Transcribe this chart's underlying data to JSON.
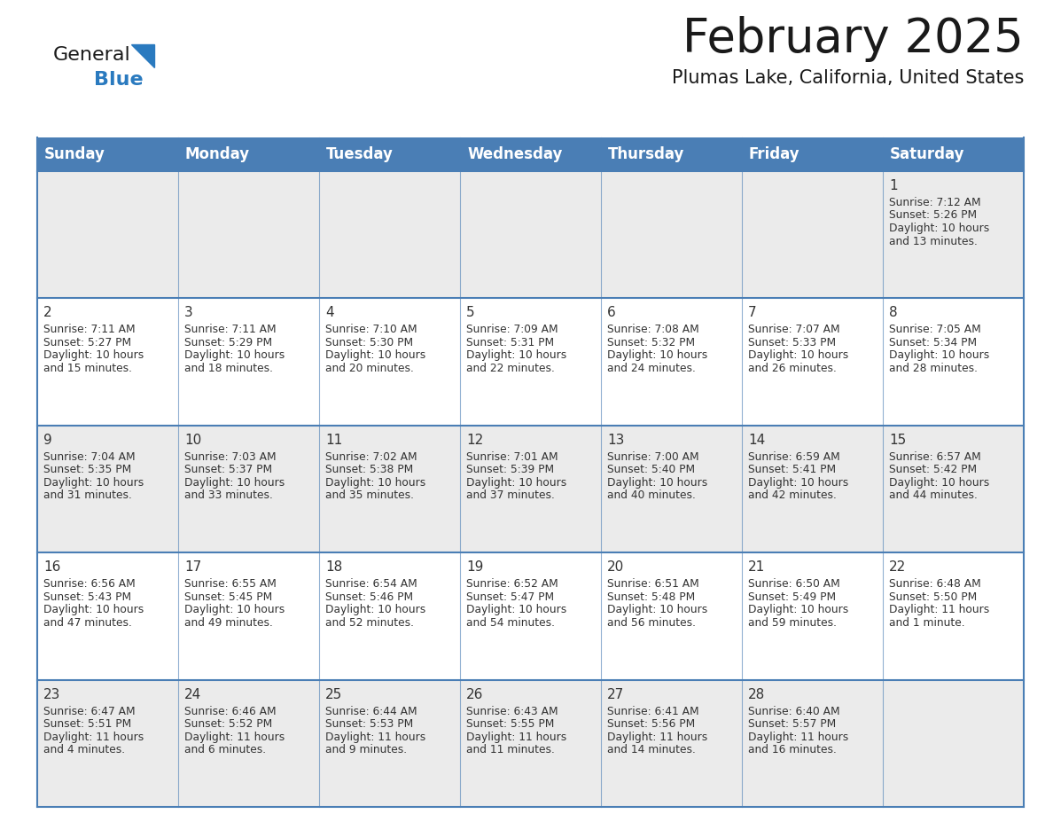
{
  "title": "February 2025",
  "subtitle": "Plumas Lake, California, United States",
  "header_color": "#4a7eb5",
  "header_text_color": "#ffffff",
  "days_of_week": [
    "Sunday",
    "Monday",
    "Tuesday",
    "Wednesday",
    "Thursday",
    "Friday",
    "Saturday"
  ],
  "background_color": "#ffffff",
  "cell_bg_odd": "#ebebeb",
  "cell_bg_even": "#ffffff",
  "border_color": "#4a7eb5",
  "text_color": "#333333",
  "calendar_data": [
    [
      null,
      null,
      null,
      null,
      null,
      null,
      {
        "day": 1,
        "sunrise": "7:12 AM",
        "sunset": "5:26 PM",
        "daylight": "10 hours",
        "daylight2": "and 13 minutes."
      }
    ],
    [
      {
        "day": 2,
        "sunrise": "7:11 AM",
        "sunset": "5:27 PM",
        "daylight": "10 hours",
        "daylight2": "and 15 minutes."
      },
      {
        "day": 3,
        "sunrise": "7:11 AM",
        "sunset": "5:29 PM",
        "daylight": "10 hours",
        "daylight2": "and 18 minutes."
      },
      {
        "day": 4,
        "sunrise": "7:10 AM",
        "sunset": "5:30 PM",
        "daylight": "10 hours",
        "daylight2": "and 20 minutes."
      },
      {
        "day": 5,
        "sunrise": "7:09 AM",
        "sunset": "5:31 PM",
        "daylight": "10 hours",
        "daylight2": "and 22 minutes."
      },
      {
        "day": 6,
        "sunrise": "7:08 AM",
        "sunset": "5:32 PM",
        "daylight": "10 hours",
        "daylight2": "and 24 minutes."
      },
      {
        "day": 7,
        "sunrise": "7:07 AM",
        "sunset": "5:33 PM",
        "daylight": "10 hours",
        "daylight2": "and 26 minutes."
      },
      {
        "day": 8,
        "sunrise": "7:05 AM",
        "sunset": "5:34 PM",
        "daylight": "10 hours",
        "daylight2": "and 28 minutes."
      }
    ],
    [
      {
        "day": 9,
        "sunrise": "7:04 AM",
        "sunset": "5:35 PM",
        "daylight": "10 hours",
        "daylight2": "and 31 minutes."
      },
      {
        "day": 10,
        "sunrise": "7:03 AM",
        "sunset": "5:37 PM",
        "daylight": "10 hours",
        "daylight2": "and 33 minutes."
      },
      {
        "day": 11,
        "sunrise": "7:02 AM",
        "sunset": "5:38 PM",
        "daylight": "10 hours",
        "daylight2": "and 35 minutes."
      },
      {
        "day": 12,
        "sunrise": "7:01 AM",
        "sunset": "5:39 PM",
        "daylight": "10 hours",
        "daylight2": "and 37 minutes."
      },
      {
        "day": 13,
        "sunrise": "7:00 AM",
        "sunset": "5:40 PM",
        "daylight": "10 hours",
        "daylight2": "and 40 minutes."
      },
      {
        "day": 14,
        "sunrise": "6:59 AM",
        "sunset": "5:41 PM",
        "daylight": "10 hours",
        "daylight2": "and 42 minutes."
      },
      {
        "day": 15,
        "sunrise": "6:57 AM",
        "sunset": "5:42 PM",
        "daylight": "10 hours",
        "daylight2": "and 44 minutes."
      }
    ],
    [
      {
        "day": 16,
        "sunrise": "6:56 AM",
        "sunset": "5:43 PM",
        "daylight": "10 hours",
        "daylight2": "and 47 minutes."
      },
      {
        "day": 17,
        "sunrise": "6:55 AM",
        "sunset": "5:45 PM",
        "daylight": "10 hours",
        "daylight2": "and 49 minutes."
      },
      {
        "day": 18,
        "sunrise": "6:54 AM",
        "sunset": "5:46 PM",
        "daylight": "10 hours",
        "daylight2": "and 52 minutes."
      },
      {
        "day": 19,
        "sunrise": "6:52 AM",
        "sunset": "5:47 PM",
        "daylight": "10 hours",
        "daylight2": "and 54 minutes."
      },
      {
        "day": 20,
        "sunrise": "6:51 AM",
        "sunset": "5:48 PM",
        "daylight": "10 hours",
        "daylight2": "and 56 minutes."
      },
      {
        "day": 21,
        "sunrise": "6:50 AM",
        "sunset": "5:49 PM",
        "daylight": "10 hours",
        "daylight2": "and 59 minutes."
      },
      {
        "day": 22,
        "sunrise": "6:48 AM",
        "sunset": "5:50 PM",
        "daylight": "11 hours",
        "daylight2": "and 1 minute."
      }
    ],
    [
      {
        "day": 23,
        "sunrise": "6:47 AM",
        "sunset": "5:51 PM",
        "daylight": "11 hours",
        "daylight2": "and 4 minutes."
      },
      {
        "day": 24,
        "sunrise": "6:46 AM",
        "sunset": "5:52 PM",
        "daylight": "11 hours",
        "daylight2": "and 6 minutes."
      },
      {
        "day": 25,
        "sunrise": "6:44 AM",
        "sunset": "5:53 PM",
        "daylight": "11 hours",
        "daylight2": "and 9 minutes."
      },
      {
        "day": 26,
        "sunrise": "6:43 AM",
        "sunset": "5:55 PM",
        "daylight": "11 hours",
        "daylight2": "and 11 minutes."
      },
      {
        "day": 27,
        "sunrise": "6:41 AM",
        "sunset": "5:56 PM",
        "daylight": "11 hours",
        "daylight2": "and 14 minutes."
      },
      {
        "day": 28,
        "sunrise": "6:40 AM",
        "sunset": "5:57 PM",
        "daylight": "11 hours",
        "daylight2": "and 16 minutes."
      },
      null
    ]
  ],
  "title_fontsize": 38,
  "subtitle_fontsize": 15,
  "header_fontsize": 12,
  "day_num_fontsize": 11,
  "cell_fontsize": 8.8
}
